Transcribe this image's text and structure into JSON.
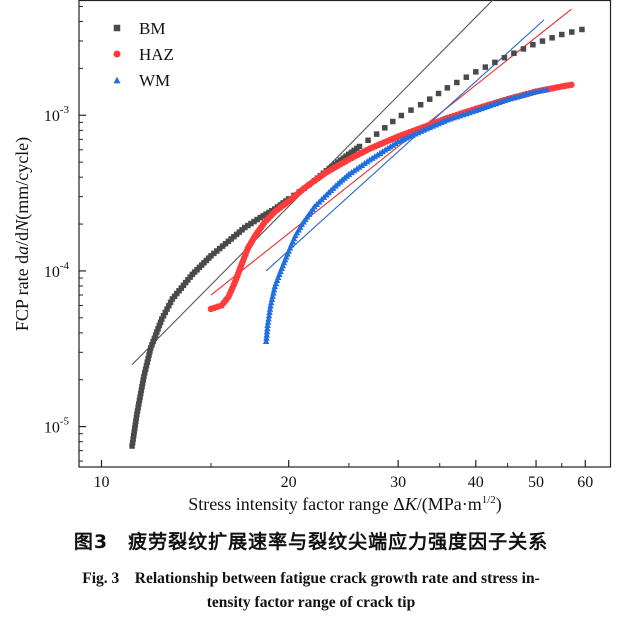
{
  "chart_data": {
    "type": "scatter",
    "x_scale": "log",
    "y_scale": "log",
    "xlim": [
      9.2,
      66
    ],
    "ylim": [
      5.5e-06,
      0.0055
    ],
    "xlabel_prefix": "Stress intensity factor range Δ",
    "xlabel_k": "K",
    "xlabel_unit_open": "/(MPa·m",
    "xlabel_sup": "1/2",
    "xlabel_close": ")",
    "ylabel_prefix": "FCP rate d",
    "ylabel_a": "a",
    "ylabel_mid": "/d",
    "ylabel_n": "N",
    "ylabel_unit": "(mm/cycle)",
    "x_ticks": [
      {
        "value": 10,
        "label": "10"
      },
      {
        "value": 20,
        "label": "20"
      },
      {
        "value": 30,
        "label": "30"
      },
      {
        "value": 40,
        "label": "40"
      },
      {
        "value": 50,
        "label": "50"
      },
      {
        "value": 60,
        "label": "60"
      }
    ],
    "y_ticks": [
      {
        "value": 1e-05,
        "base": "10",
        "exp": "-5"
      },
      {
        "value": 0.0001,
        "base": "10",
        "exp": "-4"
      },
      {
        "value": 0.001,
        "base": "10",
        "exp": "-3"
      }
    ],
    "legend_position": "top-left",
    "grid": false,
    "series": [
      {
        "name": "BM",
        "marker": "square",
        "color": "#4a4a4a",
        "fit_color": "#555555",
        "points": [
          [
            11.2,
            7.5e-06
          ],
          [
            11.4,
            1.2e-05
          ],
          [
            11.7,
            2.1e-05
          ],
          [
            12.0,
            3.2e-05
          ],
          [
            12.5,
            4.9e-05
          ],
          [
            13.0,
            6.6e-05
          ],
          [
            14.0,
            9.5e-05
          ],
          [
            15.0,
            0.000125
          ],
          [
            16.0,
            0.000155
          ],
          [
            17.0,
            0.00019
          ],
          [
            18.0,
            0.00022
          ],
          [
            19.0,
            0.00025
          ],
          [
            20.0,
            0.00029
          ],
          [
            21.0,
            0.00033
          ],
          [
            22.0,
            0.00038
          ],
          [
            23.0,
            0.00044
          ],
          [
            24.0,
            0.0005
          ],
          [
            26.0,
            0.00063
          ],
          [
            28.0,
            0.00078
          ],
          [
            30.0,
            0.00097
          ],
          [
            33.0,
            0.0012
          ],
          [
            36.0,
            0.0015
          ],
          [
            40.0,
            0.0019
          ],
          [
            45.0,
            0.0024
          ],
          [
            50.0,
            0.0029
          ],
          [
            55.0,
            0.0033
          ],
          [
            60.0,
            0.0036
          ]
        ],
        "fit": [
          [
            11.2,
            2.5e-05
          ],
          [
            46.0,
            0.0075
          ]
        ]
      },
      {
        "name": "HAZ",
        "marker": "circle",
        "color": "#ff3b3b",
        "fit_color": "#e03030",
        "points": [
          [
            15.0,
            5.7e-05
          ],
          [
            15.6,
            6e-05
          ],
          [
            16.0,
            6.8e-05
          ],
          [
            16.4,
            8.5e-05
          ],
          [
            16.8,
            0.00011
          ],
          [
            17.2,
            0.00014
          ],
          [
            17.7,
            0.00017
          ],
          [
            18.3,
            0.000205
          ],
          [
            19.0,
            0.00024
          ],
          [
            20.0,
            0.00028
          ],
          [
            21.0,
            0.00033
          ],
          [
            22.0,
            0.00038
          ],
          [
            23.0,
            0.00043
          ],
          [
            25.0,
            0.00052
          ],
          [
            27.0,
            0.00061
          ],
          [
            30.0,
            0.00073
          ],
          [
            33.0,
            0.00084
          ],
          [
            36.0,
            0.00096
          ],
          [
            40.0,
            0.0011
          ],
          [
            45.0,
            0.00127
          ],
          [
            50.0,
            0.00142
          ],
          [
            55.0,
            0.00153
          ],
          [
            57.0,
            0.00157
          ]
        ],
        "fit": [
          [
            15.0,
            7e-05
          ],
          [
            57.0,
            0.0048
          ]
        ]
      },
      {
        "name": "WM",
        "marker": "triangle",
        "color": "#1f6fe0",
        "fit_color": "#2a66d0",
        "points": [
          [
            18.4,
            3.55e-05
          ],
          [
            18.5,
            4.5e-05
          ],
          [
            18.7,
            6e-05
          ],
          [
            19.0,
            8e-05
          ],
          [
            19.4,
            0.0001
          ],
          [
            20.0,
            0.000135
          ],
          [
            20.5,
            0.00017
          ],
          [
            21.0,
            0.0002
          ],
          [
            22.0,
            0.00026
          ],
          [
            23.0,
            0.00031
          ],
          [
            24.0,
            0.000365
          ],
          [
            25.0,
            0.00042
          ],
          [
            27.0,
            0.00052
          ],
          [
            30.0,
            0.00068
          ],
          [
            33.0,
            0.00081
          ],
          [
            36.0,
            0.00094
          ],
          [
            40.0,
            0.00108
          ],
          [
            45.0,
            0.00127
          ],
          [
            50.0,
            0.00143
          ],
          [
            52.0,
            0.00147
          ]
        ],
        "fit": [
          [
            18.4,
            0.0001
          ],
          [
            51.5,
            0.0041
          ]
        ]
      }
    ]
  },
  "caption": {
    "cn": "图3　疲劳裂纹扩展速率与裂纹尖端应力强度因子关系",
    "en_line1": "Fig. 3　Relationship between fatigue crack growth rate and stress in-",
    "en_line2": "tensity factor range of crack tip"
  }
}
